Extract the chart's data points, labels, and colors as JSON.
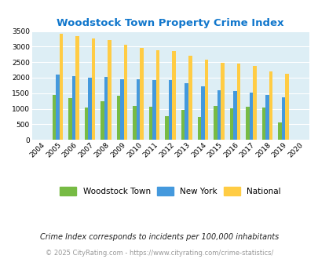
{
  "title": "Woodstock Town Property Crime Index",
  "years": [
    "2004",
    "2005",
    "2006",
    "2007",
    "2008",
    "2009",
    "2010",
    "2011",
    "2012",
    "2013",
    "2014",
    "2015",
    "2016",
    "2017",
    "2018",
    "2019",
    "2020"
  ],
  "woodstock": [
    0,
    1450,
    1350,
    1050,
    1250,
    1430,
    1090,
    1070,
    775,
    975,
    725,
    1090,
    1020,
    1065,
    1045,
    565,
    0
  ],
  "new_york": [
    0,
    2090,
    2045,
    1990,
    2020,
    1950,
    1950,
    1920,
    1920,
    1820,
    1710,
    1600,
    1560,
    1510,
    1450,
    1360,
    0
  ],
  "national": [
    0,
    3420,
    3340,
    3270,
    3210,
    3050,
    2960,
    2895,
    2850,
    2710,
    2590,
    2490,
    2460,
    2380,
    2200,
    2120,
    0
  ],
  "woodstock_color": "#77bb44",
  "newyork_color": "#4499dd",
  "national_color": "#ffcc44",
  "bg_color": "#ddeef5",
  "title_color": "#1177cc",
  "ylim": [
    0,
    3500
  ],
  "yticks": [
    0,
    500,
    1000,
    1500,
    2000,
    2500,
    3000,
    3500
  ],
  "legend_labels": [
    "Woodstock Town",
    "New York",
    "National"
  ],
  "footnote1": "Crime Index corresponds to incidents per 100,000 inhabitants",
  "footnote2": "© 2025 CityRating.com - https://www.cityrating.com/crime-statistics/",
  "footnote_color1": "#222222",
  "footnote_color2": "#999999"
}
